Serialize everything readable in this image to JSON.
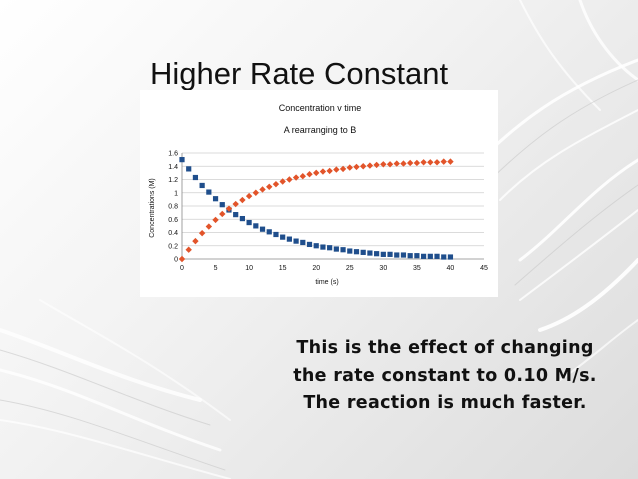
{
  "slide": {
    "title": "Higher Rate Constant",
    "body_lines": [
      "This is the effect of changing",
      "the rate constant to 0.10 M/s.",
      "The reaction is much faster."
    ]
  },
  "colors": {
    "series_a": "#1f4e8c",
    "series_b": "#e2542a"
  },
  "chart_data": {
    "type": "scatter",
    "title": "Concentration v time",
    "subtitle": "A rearranging to B",
    "xlabel": "time (s)",
    "ylabel": "Concentrations (M)",
    "xlim": [
      0,
      45
    ],
    "ylim": [
      0,
      1.6
    ],
    "xticks": [
      0,
      5,
      10,
      15,
      20,
      25,
      30,
      35,
      40,
      45
    ],
    "yticks": [
      0,
      0.2,
      0.4,
      0.6,
      0.8,
      1,
      1.2,
      1.4,
      1.6
    ],
    "ytick_labels": [
      "0",
      "0.2",
      "0.4",
      "0.6",
      "0.8",
      "1",
      "1.2",
      "1.4",
      "1.6"
    ],
    "grid": "horizontal",
    "series": [
      {
        "marker": "square",
        "x": [
          0,
          1,
          2,
          3,
          4,
          5,
          6,
          7,
          8,
          9,
          10,
          11,
          12,
          13,
          14,
          15,
          16,
          17,
          18,
          19,
          20,
          21,
          22,
          23,
          24,
          25,
          26,
          27,
          28,
          29,
          30,
          31,
          32,
          33,
          34,
          35,
          36,
          37,
          38,
          39,
          40
        ],
        "values": [
          1.5,
          1.36,
          1.23,
          1.11,
          1.01,
          0.91,
          0.82,
          0.74,
          0.67,
          0.61,
          0.55,
          0.5,
          0.45,
          0.41,
          0.37,
          0.33,
          0.3,
          0.27,
          0.25,
          0.22,
          0.2,
          0.18,
          0.17,
          0.15,
          0.14,
          0.12,
          0.11,
          0.1,
          0.09,
          0.08,
          0.07,
          0.07,
          0.06,
          0.06,
          0.05,
          0.05,
          0.04,
          0.04,
          0.04,
          0.03,
          0.03
        ]
      },
      {
        "marker": "diamond",
        "x": [
          0,
          1,
          2,
          3,
          4,
          5,
          6,
          7,
          8,
          9,
          10,
          11,
          12,
          13,
          14,
          15,
          16,
          17,
          18,
          19,
          20,
          21,
          22,
          23,
          24,
          25,
          26,
          27,
          28,
          29,
          30,
          31,
          32,
          33,
          34,
          35,
          36,
          37,
          38,
          39,
          40
        ],
        "values": [
          0,
          0.14,
          0.27,
          0.39,
          0.49,
          0.59,
          0.68,
          0.76,
          0.83,
          0.89,
          0.95,
          1.0,
          1.05,
          1.09,
          1.13,
          1.17,
          1.2,
          1.23,
          1.25,
          1.28,
          1.3,
          1.32,
          1.33,
          1.35,
          1.36,
          1.38,
          1.39,
          1.4,
          1.41,
          1.42,
          1.43,
          1.43,
          1.44,
          1.44,
          1.45,
          1.45,
          1.46,
          1.46,
          1.46,
          1.47,
          1.47
        ]
      }
    ]
  }
}
